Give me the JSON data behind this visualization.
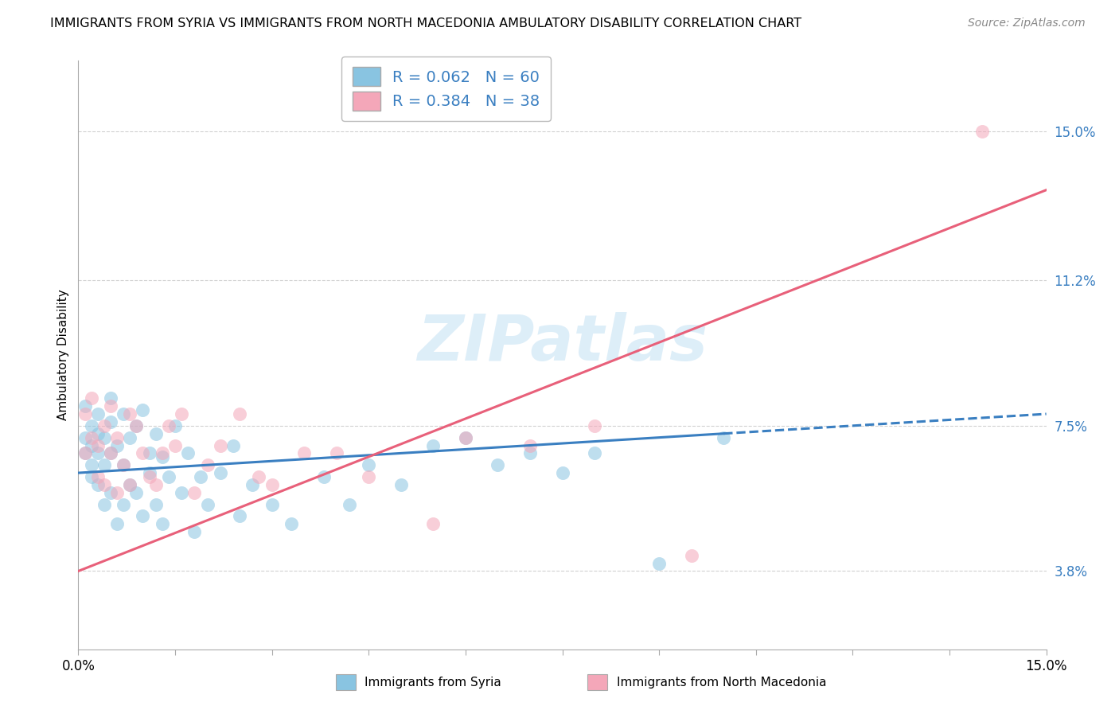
{
  "title": "IMMIGRANTS FROM SYRIA VS IMMIGRANTS FROM NORTH MACEDONIA AMBULATORY DISABILITY CORRELATION CHART",
  "source": "Source: ZipAtlas.com",
  "ylabel": "Ambulatory Disability",
  "xlim": [
    0.0,
    0.15
  ],
  "ylim": [
    0.018,
    0.168
  ],
  "yticks": [
    0.038,
    0.075,
    0.112,
    0.15
  ],
  "ytick_labels": [
    "3.8%",
    "7.5%",
    "11.2%",
    "15.0%"
  ],
  "color_syria": "#89c4e1",
  "color_macedonia": "#f4a7b9",
  "trend_syria_color": "#3a7fc1",
  "trend_macedonia_color": "#e8607a",
  "R_syria": 0.062,
  "N_syria": 60,
  "R_macedonia": 0.384,
  "N_macedonia": 38,
  "legend_label_syria": "Immigrants from Syria",
  "legend_label_macedonia": "Immigrants from North Macedonia",
  "watermark": "ZIPatlas",
  "background_color": "#ffffff",
  "grid_color": "#cccccc",
  "syria_x": [
    0.001,
    0.001,
    0.001,
    0.002,
    0.002,
    0.002,
    0.002,
    0.003,
    0.003,
    0.003,
    0.003,
    0.004,
    0.004,
    0.004,
    0.005,
    0.005,
    0.005,
    0.005,
    0.006,
    0.006,
    0.007,
    0.007,
    0.007,
    0.008,
    0.008,
    0.009,
    0.009,
    0.01,
    0.01,
    0.011,
    0.011,
    0.012,
    0.012,
    0.013,
    0.013,
    0.014,
    0.015,
    0.016,
    0.017,
    0.018,
    0.019,
    0.02,
    0.022,
    0.024,
    0.025,
    0.027,
    0.03,
    0.033,
    0.038,
    0.042,
    0.045,
    0.05,
    0.055,
    0.06,
    0.065,
    0.07,
    0.075,
    0.08,
    0.09,
    0.1
  ],
  "syria_y": [
    0.068,
    0.072,
    0.08,
    0.065,
    0.07,
    0.075,
    0.062,
    0.06,
    0.068,
    0.073,
    0.078,
    0.055,
    0.065,
    0.072,
    0.058,
    0.068,
    0.076,
    0.082,
    0.05,
    0.07,
    0.055,
    0.065,
    0.078,
    0.06,
    0.072,
    0.058,
    0.075,
    0.052,
    0.079,
    0.063,
    0.068,
    0.055,
    0.073,
    0.05,
    0.067,
    0.062,
    0.075,
    0.058,
    0.068,
    0.048,
    0.062,
    0.055,
    0.063,
    0.07,
    0.052,
    0.06,
    0.055,
    0.05,
    0.062,
    0.055,
    0.065,
    0.06,
    0.07,
    0.072,
    0.065,
    0.068,
    0.063,
    0.068,
    0.04,
    0.072
  ],
  "macedonia_x": [
    0.001,
    0.001,
    0.002,
    0.002,
    0.003,
    0.003,
    0.004,
    0.004,
    0.005,
    0.005,
    0.006,
    0.006,
    0.007,
    0.008,
    0.008,
    0.009,
    0.01,
    0.011,
    0.012,
    0.013,
    0.014,
    0.015,
    0.016,
    0.018,
    0.02,
    0.022,
    0.025,
    0.028,
    0.03,
    0.035,
    0.04,
    0.045,
    0.055,
    0.06,
    0.07,
    0.08,
    0.095,
    0.14
  ],
  "macedonia_y": [
    0.068,
    0.078,
    0.072,
    0.082,
    0.062,
    0.07,
    0.075,
    0.06,
    0.068,
    0.08,
    0.058,
    0.072,
    0.065,
    0.078,
    0.06,
    0.075,
    0.068,
    0.062,
    0.06,
    0.068,
    0.075,
    0.07,
    0.078,
    0.058,
    0.065,
    0.07,
    0.078,
    0.062,
    0.06,
    0.068,
    0.068,
    0.062,
    0.05,
    0.072,
    0.07,
    0.075,
    0.042,
    0.15
  ],
  "trend_syria_start_x": 0.0,
  "trend_syria_end_solid_x": 0.1,
  "trend_syria_end_dashed_x": 0.15,
  "trend_syria_start_y": 0.063,
  "trend_syria_end_solid_y": 0.073,
  "trend_syria_end_dashed_y": 0.078,
  "trend_mac_start_x": 0.0,
  "trend_mac_start_y": 0.038,
  "trend_mac_end_x": 0.15,
  "trend_mac_end_y": 0.135
}
